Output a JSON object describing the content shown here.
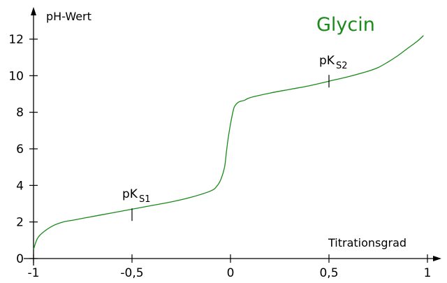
{
  "chart_data": {
    "type": "line",
    "title": "Glycin",
    "xlabel": "Titrationsgrad",
    "ylabel": "pH-Wert",
    "xlim": [
      -1,
      1
    ],
    "ylim": [
      0,
      13.5
    ],
    "x_ticks": [
      -1,
      -0.5,
      0,
      0.5,
      1
    ],
    "x_tick_labels": [
      "-1",
      "-0,5",
      "0",
      "0,5",
      "1"
    ],
    "y_ticks": [
      0,
      2,
      4,
      6,
      8,
      10,
      12
    ],
    "y_tick_labels": [
      "0",
      "2",
      "4",
      "6",
      "8",
      "10",
      "12"
    ],
    "grid": false,
    "legend": "none",
    "series": [
      {
        "color": "#1a8a1a",
        "x": [
          -1,
          -0.98,
          -0.95,
          -0.9,
          -0.85,
          -0.8,
          -0.7,
          -0.6,
          -0.5,
          -0.4,
          -0.3,
          -0.2,
          -0.1,
          -0.07,
          -0.05,
          -0.03,
          -0.02,
          -0.01,
          0,
          0.01,
          0.02,
          0.04,
          0.07,
          0.1,
          0.2,
          0.3,
          0.4,
          0.5,
          0.6,
          0.7,
          0.75,
          0.8,
          0.85,
          0.9,
          0.95,
          0.98
        ],
        "y": [
          0.5,
          1.1,
          1.45,
          1.8,
          2.0,
          2.1,
          2.3,
          2.5,
          2.7,
          2.9,
          3.1,
          3.35,
          3.7,
          3.95,
          4.3,
          5.0,
          5.9,
          6.7,
          7.35,
          7.9,
          8.3,
          8.55,
          8.65,
          8.8,
          9.05,
          9.25,
          9.45,
          9.7,
          9.95,
          10.25,
          10.45,
          10.75,
          11.1,
          11.5,
          11.9,
          12.2
        ]
      }
    ],
    "annotations": [
      {
        "label": "pK",
        "sub": "S1",
        "x": -0.5,
        "y": 2.4
      },
      {
        "label": "pK",
        "sub": "S2",
        "x": 0.5,
        "y": 9.7
      }
    ]
  }
}
